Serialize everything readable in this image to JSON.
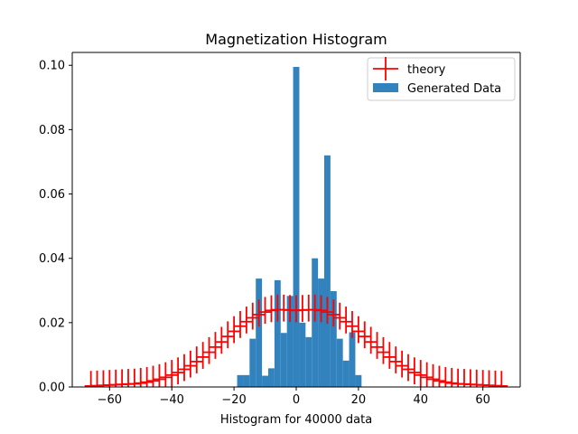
{
  "chart_data": {
    "type": "bar",
    "title": "Magnetization Histogram",
    "xlabel": "Histogram for 40000 data",
    "ylabel": "",
    "xlim": [
      -72,
      72
    ],
    "ylim": [
      0,
      0.104
    ],
    "xticks": [
      -60,
      -40,
      -20,
      0,
      20,
      40,
      60
    ],
    "xtick_labels": [
      "−60",
      "−40",
      "−20",
      "0",
      "20",
      "40",
      "60"
    ],
    "yticks": [
      0.0,
      0.02,
      0.04,
      0.06,
      0.08,
      0.1
    ],
    "ytick_labels": [
      "0.00",
      "0.02",
      "0.04",
      "0.06",
      "0.08",
      "0.10"
    ],
    "grid": false,
    "legend": {
      "placement": "top-right",
      "entries": [
        {
          "label": "theory",
          "marker": "errorbar-cross",
          "color": "#ff0000"
        },
        {
          "label": "Generated Data",
          "marker": "patch",
          "color": "#3182bd"
        }
      ]
    },
    "series": [
      {
        "name": "Generated Data",
        "kind": "histogram",
        "color": "#3182bd",
        "bin_width": 2,
        "bins": [
          {
            "x": -18,
            "value": 0.0037
          },
          {
            "x": -16,
            "value": 0.0037
          },
          {
            "x": -14,
            "value": 0.015
          },
          {
            "x": -12,
            "value": 0.0337
          },
          {
            "x": -10,
            "value": 0.0035
          },
          {
            "x": -8,
            "value": 0.0058
          },
          {
            "x": -6,
            "value": 0.0332
          },
          {
            "x": -4,
            "value": 0.0168
          },
          {
            "x": -2,
            "value": 0.0283
          },
          {
            "x": 0,
            "value": 0.0995
          },
          {
            "x": 2,
            "value": 0.02
          },
          {
            "x": 4,
            "value": 0.0155
          },
          {
            "x": 6,
            "value": 0.04
          },
          {
            "x": 8,
            "value": 0.0337
          },
          {
            "x": 10,
            "value": 0.072
          },
          {
            "x": 12,
            "value": 0.0298
          },
          {
            "x": 14,
            "value": 0.015
          },
          {
            "x": 16,
            "value": 0.0082
          },
          {
            "x": 18,
            "value": 0.017
          },
          {
            "x": 20,
            "value": 0.0037
          }
        ]
      },
      {
        "name": "theory",
        "kind": "errorbar",
        "color": "#ff0000",
        "x_step": 2,
        "x_error": 2,
        "points": [
          {
            "x": -66,
            "y": 0.0003
          },
          {
            "x": -64,
            "y": 0.0004
          },
          {
            "x": -62,
            "y": 0.0005
          },
          {
            "x": -60,
            "y": 0.0006
          },
          {
            "x": -58,
            "y": 0.0007
          },
          {
            "x": -56,
            "y": 0.0008
          },
          {
            "x": -54,
            "y": 0.0009
          },
          {
            "x": -52,
            "y": 0.001
          },
          {
            "x": -50,
            "y": 0.0012
          },
          {
            "x": -48,
            "y": 0.0015
          },
          {
            "x": -46,
            "y": 0.0019
          },
          {
            "x": -44,
            "y": 0.0024
          },
          {
            "x": -42,
            "y": 0.003
          },
          {
            "x": -40,
            "y": 0.0037
          },
          {
            "x": -38,
            "y": 0.0045
          },
          {
            "x": -36,
            "y": 0.0055
          },
          {
            "x": -34,
            "y": 0.0066
          },
          {
            "x": -32,
            "y": 0.0079
          },
          {
            "x": -30,
            "y": 0.0093
          },
          {
            "x": -28,
            "y": 0.0108
          },
          {
            "x": -26,
            "y": 0.0124
          },
          {
            "x": -24,
            "y": 0.014
          },
          {
            "x": -22,
            "y": 0.0157
          },
          {
            "x": -20,
            "y": 0.0173
          },
          {
            "x": -18,
            "y": 0.0189
          },
          {
            "x": -16,
            "y": 0.0203
          },
          {
            "x": -14,
            "y": 0.0215
          },
          {
            "x": -12,
            "y": 0.0225
          },
          {
            "x": -10,
            "y": 0.0233
          },
          {
            "x": -8,
            "y": 0.0238
          },
          {
            "x": -6,
            "y": 0.024
          },
          {
            "x": -4,
            "y": 0.024
          },
          {
            "x": -2,
            "y": 0.0239
          },
          {
            "x": 0,
            "y": 0.0238
          },
          {
            "x": 2,
            "y": 0.0239
          },
          {
            "x": 4,
            "y": 0.024
          },
          {
            "x": 6,
            "y": 0.024
          },
          {
            "x": 8,
            "y": 0.0238
          },
          {
            "x": 10,
            "y": 0.0233
          },
          {
            "x": 12,
            "y": 0.0225
          },
          {
            "x": 14,
            "y": 0.0215
          },
          {
            "x": 16,
            "y": 0.0203
          },
          {
            "x": 18,
            "y": 0.0189
          },
          {
            "x": 20,
            "y": 0.0173
          },
          {
            "x": 22,
            "y": 0.0157
          },
          {
            "x": 24,
            "y": 0.014
          },
          {
            "x": 26,
            "y": 0.0124
          },
          {
            "x": 28,
            "y": 0.0108
          },
          {
            "x": 30,
            "y": 0.0093
          },
          {
            "x": 32,
            "y": 0.0079
          },
          {
            "x": 34,
            "y": 0.0066
          },
          {
            "x": 36,
            "y": 0.0055
          },
          {
            "x": 38,
            "y": 0.0045
          },
          {
            "x": 40,
            "y": 0.0037
          },
          {
            "x": 42,
            "y": 0.003
          },
          {
            "x": 44,
            "y": 0.0024
          },
          {
            "x": 46,
            "y": 0.0019
          },
          {
            "x": 48,
            "y": 0.0015
          },
          {
            "x": 50,
            "y": 0.0012
          },
          {
            "x": 52,
            "y": 0.001
          },
          {
            "x": 54,
            "y": 0.0009
          },
          {
            "x": 56,
            "y": 0.0008
          },
          {
            "x": 58,
            "y": 0.0007
          },
          {
            "x": 60,
            "y": 0.0006
          },
          {
            "x": 62,
            "y": 0.0005
          },
          {
            "x": 64,
            "y": 0.0004
          },
          {
            "x": 66,
            "y": 0.0003
          }
        ]
      }
    ]
  }
}
